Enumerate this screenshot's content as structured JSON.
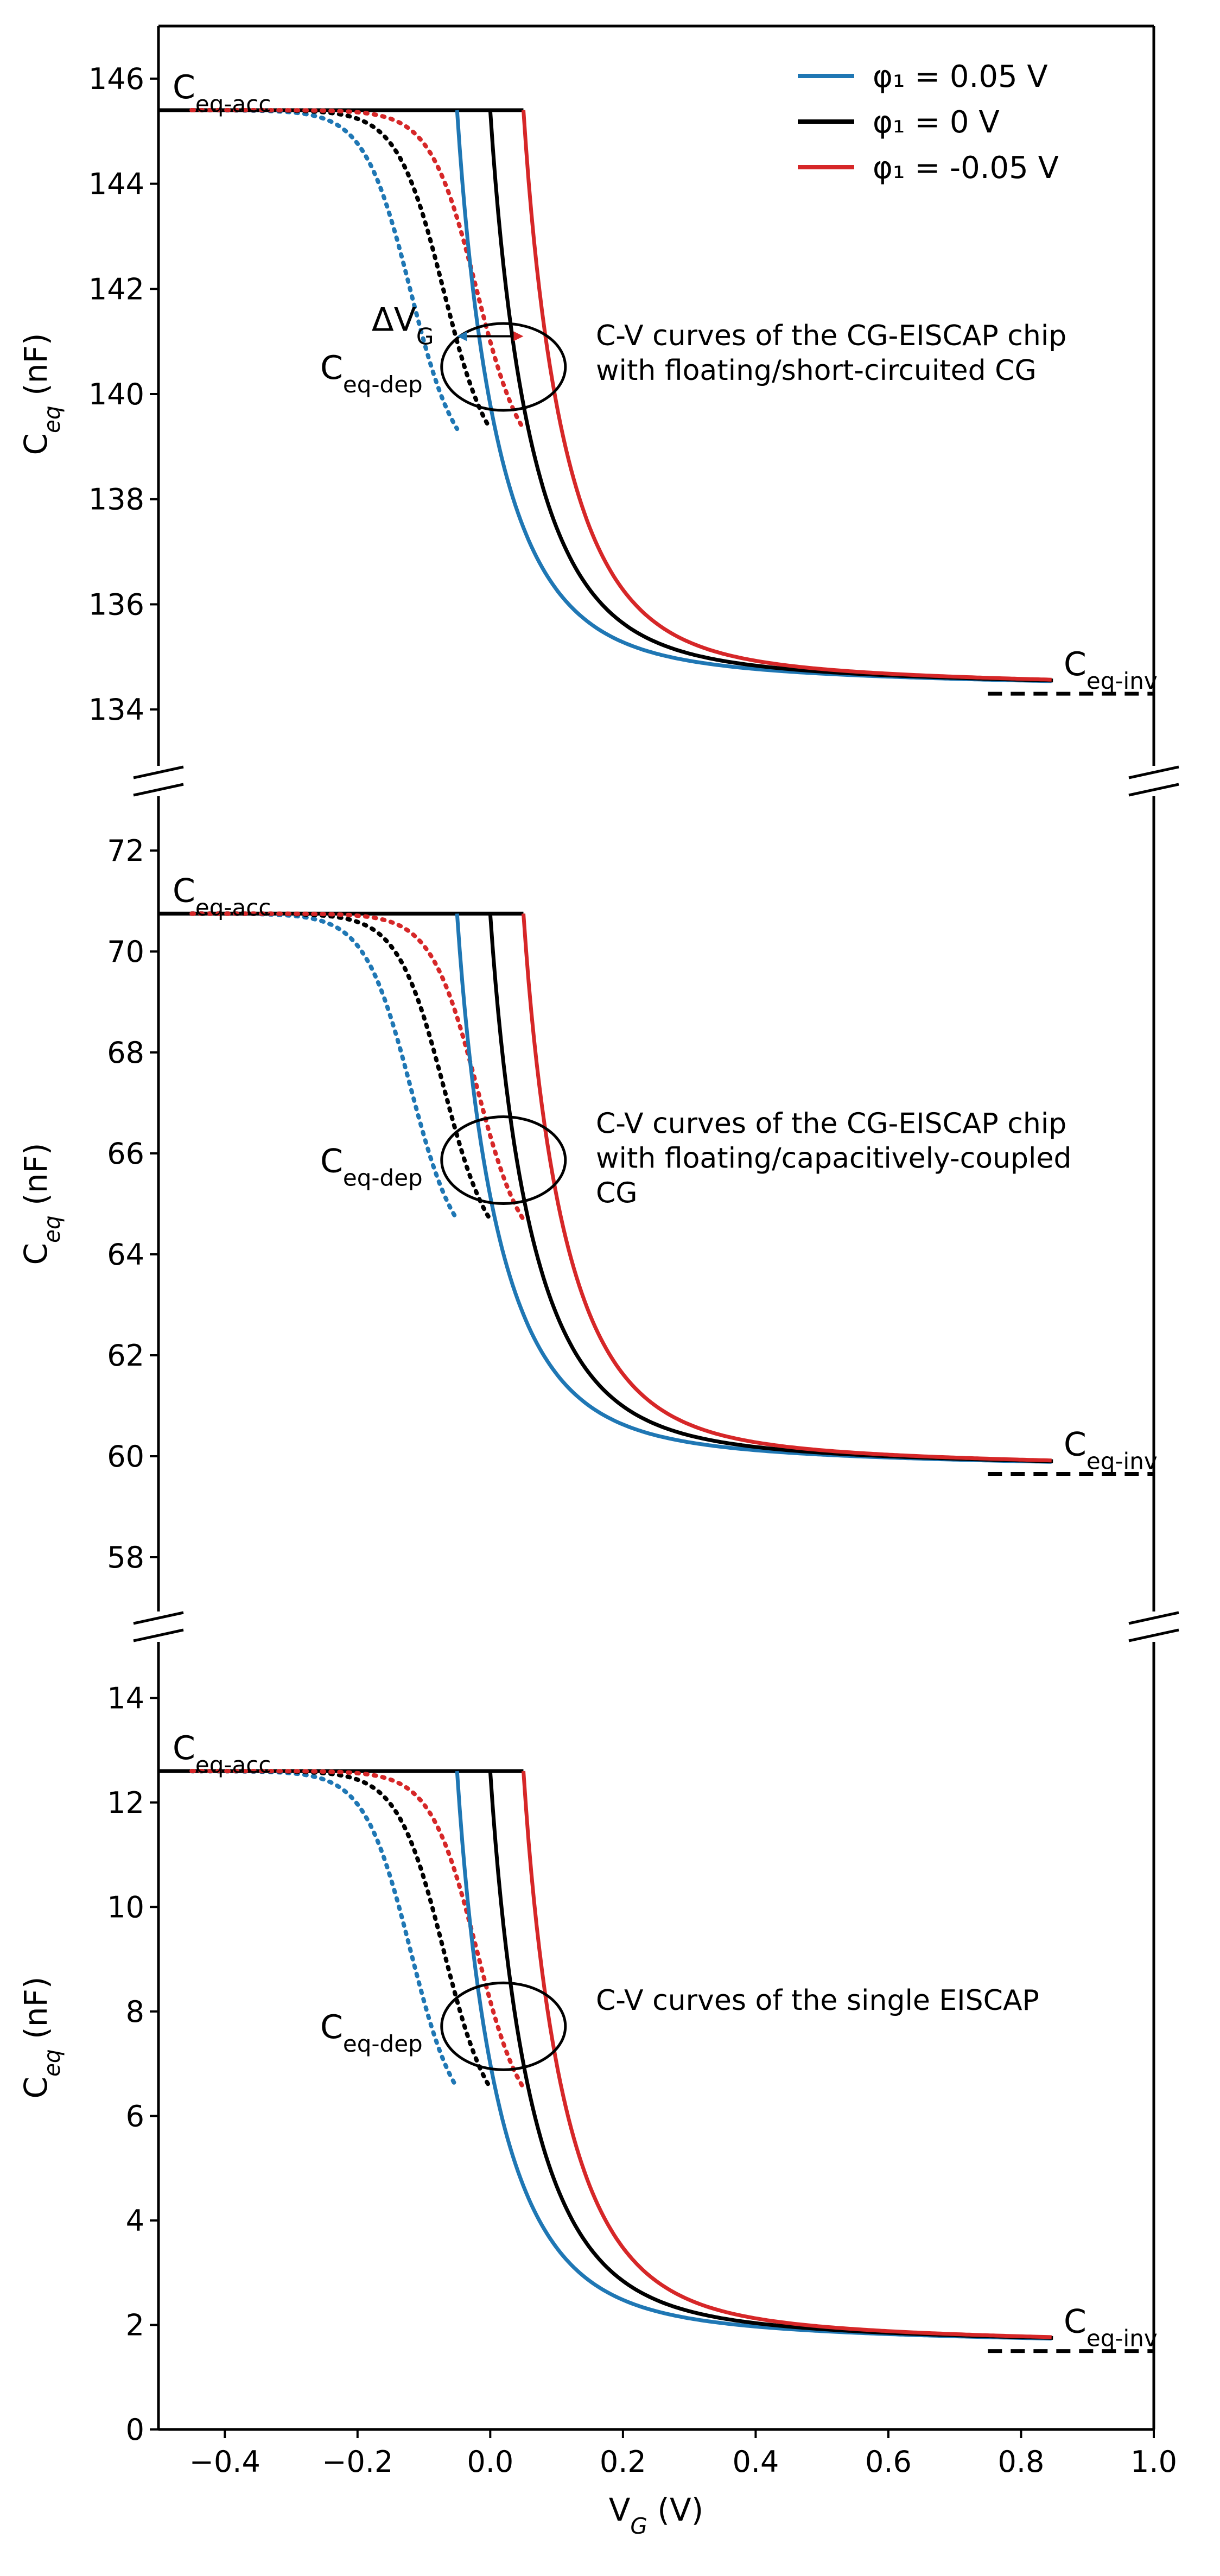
{
  "chart_data": {
    "type": "line",
    "layout": "3 vertically stacked panels sharing one x-axis, broken y-axis",
    "x_axis": {
      "label": "V_G (V)",
      "label_main": "V",
      "label_sub": "G",
      "label_unit": "(V)",
      "xlim": [
        -0.5,
        1.0
      ],
      "ticks": [
        -0.4,
        -0.2,
        0.0,
        0.2,
        0.4,
        0.6,
        0.8,
        1.0
      ],
      "tick_labels": [
        "−0.4",
        "−0.2",
        "0.0",
        "0.2",
        "0.4",
        "0.6",
        "0.8",
        "1.0"
      ]
    },
    "y_label": {
      "main": "C",
      "sub": "eq",
      "unit": "(nF)"
    },
    "colors": {
      "blue": "#1f77b4",
      "black": "#000000",
      "red": "#d62728"
    },
    "legend": {
      "placement": "top-right",
      "entries": [
        {
          "label": "φ₁ = 0.05 V",
          "color": "#1f77b4",
          "phi": 0.05
        },
        {
          "label": "φ₁ = 0 V",
          "color": "#000000",
          "phi": 0.0
        },
        {
          "label": "φ₁ = -0.05 V",
          "color": "#d62728",
          "phi": -0.05
        }
      ]
    },
    "curve_model": {
      "flatband_shift_V": {
        "blue": -0.05,
        "black": 0.0,
        "red": 0.05
      },
      "solid": "vertical rise at V_FB to C_acc, then decreasing depletion curve to C_inv near 0.85 V",
      "dotted": "gradual roll-off from C_acc toward V_FB (smoothed)",
      "dashed": "black inversion plateau from 0.75 V to 1.0 V"
    },
    "panels": [
      {
        "id": "top",
        "ylim": [
          133,
          147
        ],
        "yticks": [
          134,
          136,
          138,
          140,
          142,
          144,
          146
        ],
        "C_acc": 145.4,
        "C_inv": 134.3,
        "annotation_lines": [
          "C-V curves of the CG-EISCAP chip",
          "with floating/short-circuited CG"
        ],
        "labels": {
          "acc": {
            "main": "C",
            "sub": "eq-acc"
          },
          "dep": {
            "main": "C",
            "sub": "eq-dep"
          },
          "inv": {
            "main": "C",
            "sub": "eq-inv"
          }
        },
        "delta_label": {
          "main": "ΔV",
          "sub": "G"
        }
      },
      {
        "id": "middle",
        "ylim": [
          57,
          73
        ],
        "yticks": [
          58,
          60,
          62,
          64,
          66,
          68,
          70,
          72
        ],
        "C_acc": 70.75,
        "C_inv": 59.65,
        "annotation_lines": [
          "C-V curves of the CG-EISCAP chip",
          "with floating/capacitively-coupled",
          "CG"
        ],
        "labels": {
          "acc": {
            "main": "C",
            "sub": "eq-acc"
          },
          "dep": {
            "main": "C",
            "sub": "eq-dep"
          },
          "inv": {
            "main": "C",
            "sub": "eq-inv"
          }
        }
      },
      {
        "id": "bottom",
        "ylim": [
          0,
          15
        ],
        "yticks": [
          0,
          2,
          4,
          6,
          8,
          10,
          12,
          14
        ],
        "C_acc": 12.6,
        "C_inv": 1.5,
        "annotation_lines": [
          "C-V curves of the single EISCAP"
        ],
        "labels": {
          "acc": {
            "main": "C",
            "sub": "eq-acc"
          },
          "dep": {
            "main": "C",
            "sub": "eq-dep"
          },
          "inv": {
            "main": "C",
            "sub": "eq-inv"
          }
        }
      }
    ]
  }
}
